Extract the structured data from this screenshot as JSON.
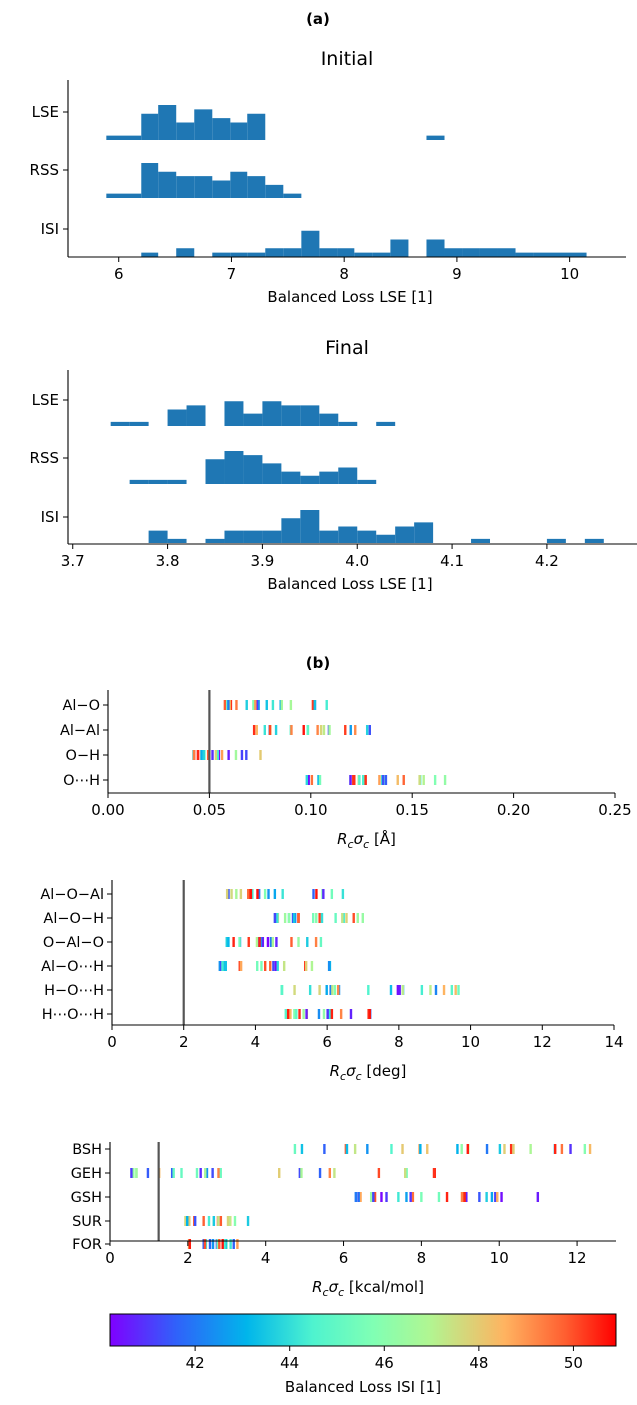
{
  "panel_a": {
    "label": "(a)",
    "cmap_stops": [
      "#7f00ff",
      "#00b5eb",
      "#80ffb4",
      "#ffb360",
      "#ff0000"
    ],
    "bar_color": "#1f77b4"
  },
  "panel_b": {
    "label": "(b)",
    "cmap": [
      "#7f00ff",
      "#3061fa",
      "#00b5eb",
      "#4ef3cf",
      "#80ffb4",
      "#b0f692",
      "#ffb360",
      "#ff5e30",
      "#ff0000"
    ],
    "ref_line_color": "#555555"
  },
  "colorbar": {
    "label": "Balanced Loss ISI [1]",
    "ticks": [
      42,
      44,
      46,
      48,
      50
    ],
    "range": [
      40.2,
      50.9
    ]
  },
  "chart_data": [
    {
      "id": "initial",
      "type": "histogram-rows",
      "title": "Initial",
      "xlabel": "Balanced Loss LSE [1]",
      "xlim": [
        5.55,
        10.5
      ],
      "xticks": [
        6,
        7,
        8,
        9,
        10
      ],
      "rows": [
        "LSE",
        "RSS",
        "ISI"
      ],
      "bin_edges": [
        5.89,
        6.2,
        6.35,
        6.51,
        6.67,
        6.83,
        6.99,
        7.14,
        7.3,
        7.46,
        7.62,
        7.78,
        7.94,
        8.09,
        8.25,
        8.41,
        8.57,
        8.73,
        8.89,
        9.05,
        9.2,
        9.36,
        9.52,
        9.68,
        10.15
      ],
      "counts": {
        "LSE": [
          1,
          6,
          8,
          4,
          7,
          5,
          4,
          6,
          0,
          0,
          0,
          0,
          0,
          0,
          0,
          0,
          0,
          1,
          0,
          0,
          0,
          0,
          0,
          0
        ],
        "RSS": [
          1,
          8,
          6,
          5,
          5,
          4,
          6,
          5,
          3,
          1,
          0,
          0,
          0,
          0,
          0,
          0,
          0,
          0,
          0,
          0,
          0,
          0,
          0,
          0
        ],
        "ISI": [
          0,
          1,
          0,
          2,
          0,
          1,
          1,
          1,
          2,
          2,
          6,
          2,
          2,
          1,
          1,
          4,
          0,
          4,
          2,
          2,
          2,
          2,
          1,
          1
        ]
      }
    },
    {
      "id": "final",
      "type": "histogram-rows",
      "title": "Final",
      "xlabel": "Balanced Loss LSE [1]",
      "xlim": [
        3.695,
        4.295
      ],
      "xticks": [
        3.7,
        3.8,
        3.9,
        4.0,
        4.1,
        4.2
      ],
      "rows": [
        "LSE",
        "RSS",
        "ISI"
      ],
      "bin_edges": [
        3.74,
        3.76,
        3.78,
        3.8,
        3.82,
        3.84,
        3.86,
        3.88,
        3.9,
        3.92,
        3.94,
        3.96,
        3.98,
        4.0,
        4.02,
        4.04,
        4.06,
        4.08,
        4.1,
        4.12,
        4.14,
        4.16,
        4.18,
        4.2,
        4.22,
        4.24,
        4.26
      ],
      "counts": {
        "LSE": [
          1,
          1,
          0,
          4,
          5,
          0,
          6,
          3,
          6,
          5,
          5,
          3,
          1,
          0,
          1,
          0,
          0,
          0,
          0,
          0,
          0,
          0,
          0,
          0,
          0,
          0
        ],
        "RSS": [
          0,
          1,
          1,
          1,
          0,
          6,
          8,
          7,
          5,
          3,
          2,
          3,
          4,
          1,
          0,
          0,
          0,
          0,
          0,
          0,
          0,
          0,
          0,
          0,
          0,
          0
        ],
        "ISI": [
          0,
          0,
          3,
          1,
          0,
          1,
          3,
          3,
          3,
          6,
          8,
          3,
          4,
          3,
          2,
          4,
          5,
          0,
          0,
          1,
          0,
          0,
          0,
          1,
          0,
          1
        ]
      }
    },
    {
      "id": "distances",
      "type": "strip",
      "xlabel": "R_c σ_c [Å]",
      "xlim": [
        0.0,
        0.25
      ],
      "xticks": [
        "0.00",
        "0.05",
        "0.10",
        "0.15",
        "0.20",
        "0.25"
      ],
      "ref_line": 0.05,
      "rows": [
        {
          "label": "Al−O",
          "range": [
            0.057,
            0.108
          ],
          "n": 22
        },
        {
          "label": "Al−Al",
          "range": [
            0.071,
            0.131
          ],
          "n": 22
        },
        {
          "label": "O−H",
          "range": [
            0.042,
            0.077
          ],
          "n": 20
        },
        {
          "label": "O⋯H",
          "range": [
            0.098,
            0.168
          ],
          "n": 26
        }
      ]
    },
    {
      "id": "angles",
      "type": "strip",
      "xlabel": "R_c σ_c [deg]",
      "xlim": [
        0,
        14
      ],
      "xticks": [
        "0",
        "2",
        "4",
        "6",
        "8",
        "10",
        "12",
        "14"
      ],
      "ref_line": 2.0,
      "rows": [
        {
          "label": "Al−O−Al",
          "range": [
            3.2,
            6.5
          ],
          "n": 22
        },
        {
          "label": "Al−O−H",
          "range": [
            4.5,
            7.3
          ],
          "n": 24
        },
        {
          "label": "O−Al−O",
          "range": [
            3.2,
            6.0
          ],
          "n": 22
        },
        {
          "label": "Al−O⋯H",
          "range": [
            3.0,
            6.2
          ],
          "n": 22
        },
        {
          "label": "H−O⋯H",
          "range": [
            4.6,
            9.8
          ],
          "n": 24
        },
        {
          "label": "H⋯O⋯H",
          "range": [
            4.8,
            7.3
          ],
          "n": 22
        }
      ]
    },
    {
      "id": "energies",
      "type": "strip",
      "xlabel": "R_c σ_c [kcal/mol]",
      "xlim": [
        0,
        13
      ],
      "xticks": [
        "0",
        "2",
        "4",
        "6",
        "8",
        "10",
        "12"
      ],
      "ref_line": 1.25,
      "rows": [
        {
          "label": "BSH",
          "range": [
            4.6,
            12.4
          ],
          "n": 28
        },
        {
          "label": "GEH",
          "range": [
            0.5,
            9.1
          ],
          "n": 28
        },
        {
          "label": "GSH",
          "range": [
            6.2,
            11.5
          ],
          "n": 28
        },
        {
          "label": "SUR",
          "range": [
            1.9,
            3.6
          ],
          "n": 18
        },
        {
          "label": "FOR",
          "range": [
            2.0,
            3.3
          ],
          "n": 18
        }
      ]
    }
  ]
}
